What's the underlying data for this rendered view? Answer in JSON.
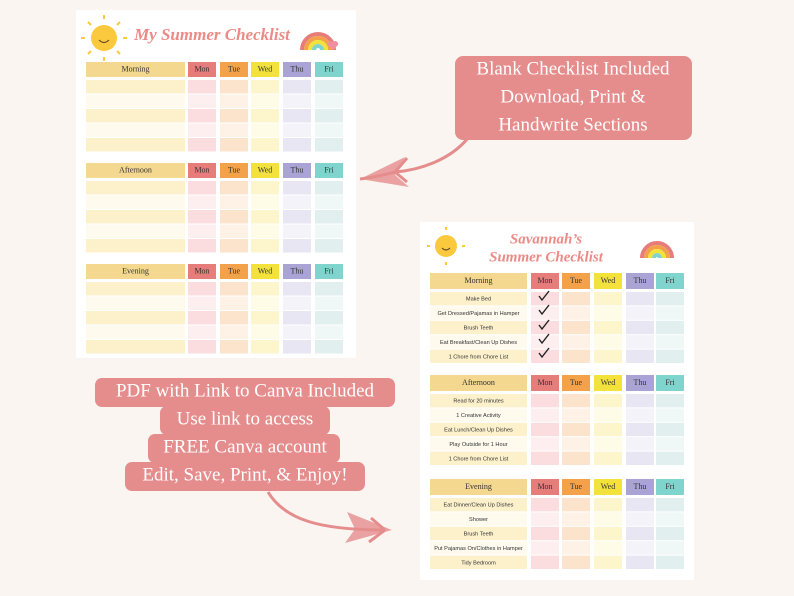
{
  "callout_top": {
    "lines": [
      "Blank Checklist Included",
      "Download, Print &",
      "Handwrite Sections"
    ]
  },
  "callout_bottom": {
    "lines": [
      "PDF with Link to Canva Included",
      "Use link to access",
      "FREE Canva account",
      "Edit, Save, Print, & Enjoy!"
    ]
  },
  "blank_sheet": {
    "title": "My Summer Checklist",
    "days": [
      "Mon",
      "Tue",
      "Wed",
      "Thu",
      "Fri"
    ],
    "sections": [
      {
        "name": "Morning"
      },
      {
        "name": "Afternoon"
      },
      {
        "name": "Evening"
      }
    ]
  },
  "filled_sheet": {
    "title": [
      "Savannah’s",
      "Summer Checklist"
    ],
    "days": [
      "Mon",
      "Tue",
      "Wed",
      "Thu",
      "Fri"
    ],
    "sections": [
      {
        "name": "Morning",
        "tasks": [
          "Make Bed",
          "Get Dressed/Pajamas in Hamper",
          "Brush Teeth",
          "Eat Breakfast/Clean Up Dishes",
          "1 Chore from Chore List"
        ]
      },
      {
        "name": "Afternoon",
        "tasks": [
          "Read for 20 minutes",
          "1 Creative Activity",
          "Eat Lunch/Clean Up Dishes",
          "Play Outside for 1 Hour",
          "1 Chore from Chore List"
        ]
      },
      {
        "name": "Evening",
        "tasks": [
          "Eat Dinner/Clean Up Dishes",
          "Shower",
          "Brush Teeth",
          "Put Pajamas On/Clothes in Hamper",
          "Tidy Bedroom"
        ]
      }
    ]
  }
}
